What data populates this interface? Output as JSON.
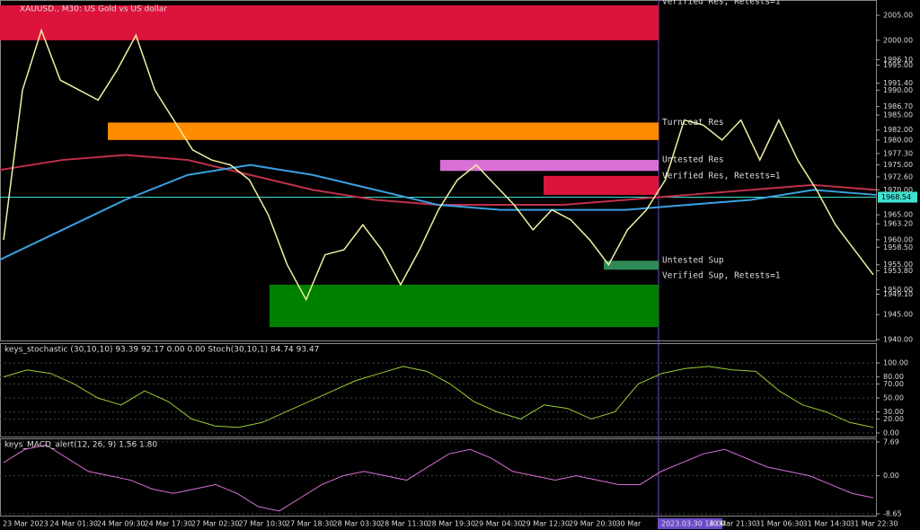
{
  "header": {
    "title": "XAUUSD., M30: US Gold vs US dollar"
  },
  "price": {
    "ylim": [
      1940,
      2005
    ],
    "axis": [
      {
        "value": 2005,
        "label": "2005.00"
      },
      {
        "value": 2000,
        "label": "2000.00"
      },
      {
        "value": 1996.1,
        "label": "1996.10"
      },
      {
        "value": 1995,
        "label": "1995.00"
      },
      {
        "value": 1991.4,
        "label": "1991.40"
      },
      {
        "value": 1990,
        "label": "1990.00"
      },
      {
        "value": 1986.7,
        "label": "1986.70"
      },
      {
        "value": 1985,
        "label": "1985.00"
      },
      {
        "value": 1982,
        "label": "1982.00"
      },
      {
        "value": 1980,
        "label": "1980.00"
      },
      {
        "value": 1977.3,
        "label": "1977.30"
      },
      {
        "value": 1975,
        "label": "1975.00"
      },
      {
        "value": 1972.6,
        "label": "1972.60"
      },
      {
        "value": 1970,
        "label": "1970.00"
      },
      {
        "value": 1965,
        "label": "1965.00"
      },
      {
        "value": 1963.2,
        "label": "1963.20"
      },
      {
        "value": 1960,
        "label": "1960.00"
      },
      {
        "value": 1958.5,
        "label": "1958.50"
      },
      {
        "value": 1955,
        "label": "1955.00"
      },
      {
        "value": 1953.8,
        "label": "1953.80"
      },
      {
        "value": 1950,
        "label": "1950.00"
      },
      {
        "value": 1949.1,
        "label": "1949.10"
      },
      {
        "value": 1945,
        "label": "1945.00"
      },
      {
        "value": 1940,
        "label": "1940.00"
      }
    ],
    "current": {
      "value": 1968.54,
      "label": "1968.54"
    },
    "closes": [
      1960,
      1990,
      2002,
      1992,
      1990,
      1988,
      1994,
      2001,
      1990,
      1984,
      1978,
      1976,
      1975,
      1972,
      1965,
      1955,
      1948,
      1957,
      1958,
      1963,
      1958,
      1951,
      1958,
      1966,
      1972,
      1975,
      1971,
      1967,
      1962,
      1966,
      1964,
      1960,
      1955,
      1962,
      1966,
      1972,
      1984,
      1983,
      1980,
      1984,
      1976,
      1984,
      1976,
      1970,
      1963,
      1958,
      1953
    ],
    "ma_red": [
      1974,
      1976,
      1977,
      1976,
      1973,
      1970,
      1968,
      1967,
      1967,
      1967,
      1968,
      1969,
      1970,
      1971,
      1970
    ],
    "ma_blue": [
      1956,
      1962,
      1968,
      1973,
      1975,
      1973,
      1970,
      1967,
      1966,
      1966,
      1966,
      1967,
      1968,
      1970,
      1969
    ]
  },
  "zones": [
    {
      "label": "Verified Res, Retests=1",
      "hi": 2007,
      "lo": 2000,
      "x0": 0,
      "color": "#dc143c"
    },
    {
      "label": "Turncoat Res",
      "hi": 1983.5,
      "lo": 1980,
      "x0": 120,
      "color": "#ff8c00"
    },
    {
      "label": "Untested Res",
      "hi": 1976,
      "lo": 1973.8,
      "x0": 490,
      "color": "#da70d6"
    },
    {
      "label": "Verified Res, Retests=1",
      "hi": 1972.8,
      "lo": 1969,
      "x0": 605,
      "color": "#dc143c"
    },
    {
      "label": "Untested Sup",
      "hi": 1955.8,
      "lo": 1954,
      "x0": 672,
      "color": "#2e8b57"
    },
    {
      "label": "Verified Sup, Retests=1",
      "hi": 1951,
      "lo": 1942.5,
      "x0": 300,
      "color": "#008000"
    }
  ],
  "stochastic": {
    "title": "keys_stochastic (30,10,10) 93.39 92.17 0.00 0.00 Stoch(30,10,1) 84.74 93.47",
    "ylim": [
      0,
      100
    ],
    "axis": [
      {
        "value": 100,
        "label": "100.00"
      },
      {
        "value": 80,
        "label": "80.00"
      },
      {
        "value": 70,
        "label": "70.00"
      },
      {
        "value": 50,
        "label": "50.00"
      },
      {
        "value": 30,
        "label": "30.00"
      },
      {
        "value": 20,
        "label": "20.00"
      },
      {
        "value": 0,
        "label": "0.00"
      }
    ],
    "values": [
      80,
      90,
      85,
      70,
      50,
      40,
      60,
      45,
      20,
      10,
      8,
      15,
      30,
      45,
      60,
      75,
      85,
      95,
      88,
      70,
      45,
      30,
      20,
      40,
      35,
      20,
      30,
      70,
      85,
      92,
      95,
      90,
      88,
      60,
      40,
      30,
      15,
      8
    ]
  },
  "macd": {
    "title": "keys_MACD_alert(12, 26, 9) 1.56 1.80",
    "ylim": [
      -8.65,
      7.69
    ],
    "axis": [
      {
        "value": 7.69,
        "label": "7.69"
      },
      {
        "value": 0,
        "label": "0.00"
      },
      {
        "value": -8.65,
        "label": "-8.65"
      }
    ],
    "values": [
      3,
      6,
      7,
      4,
      1,
      0,
      -1,
      -3,
      -4,
      -3,
      -2,
      -4,
      -7,
      -8,
      -5,
      -2,
      0,
      1,
      0,
      -1,
      2,
      5,
      6,
      4,
      1,
      0,
      -1,
      0,
      -1,
      -2,
      -2,
      1,
      3,
      5,
      6,
      4,
      2,
      1,
      0,
      -2,
      -4,
      -5
    ]
  },
  "time_axis": [
    "23 Mar 2023",
    "24 Mar 01:30",
    "24 Mar 09:30",
    "24 Mar 17:30",
    "27 Mar 02:30",
    "27 Mar 10:30",
    "27 Mar 18:30",
    "28 Mar 03:30",
    "28 Mar 11:30",
    "28 Mar 19:30",
    "29 Mar 04:30",
    "29 Mar 12:30",
    "29 Mar 20:30",
    "30 Mar",
    "2023.03.30 14:00",
    "30 Mar 21:30",
    "31 Mar 06:30",
    "31 Mar 14:30",
    "31 Mar 22:30"
  ]
}
